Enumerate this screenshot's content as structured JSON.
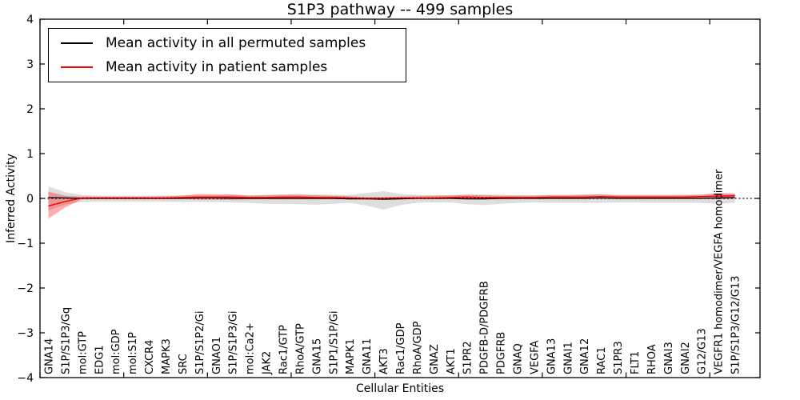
{
  "figure": {
    "title": "S1P3 pathway -- 499 samples",
    "xlabel": "Cellular Entities",
    "ylabel": "Inferred Activity"
  },
  "legend": {
    "items": [
      {
        "label": "Mean activity in all permuted samples",
        "color": "#000000"
      },
      {
        "label": "Mean activity in patient samples",
        "color": "#ff0000"
      }
    ]
  },
  "chart_data": {
    "type": "line",
    "title": "S1P3 pathway -- 499 samples",
    "xlabel": "Cellular Entities",
    "ylabel": "Inferred Activity",
    "ylim": [
      -4,
      4
    ],
    "yticks": [
      4,
      3,
      2,
      1,
      0,
      -1,
      -2,
      -3,
      -4
    ],
    "xlim": [
      0,
      43
    ],
    "xticks": [
      0,
      5,
      10,
      15,
      20,
      25,
      30,
      35,
      40
    ],
    "grid": false,
    "legend_position": "upper left",
    "zero_line": {
      "y": 0,
      "style": "dotted",
      "color": "#000000"
    },
    "categories": [
      "GNA14",
      "S1P/S1P3/Gq",
      "mol:GTP",
      "EDG1",
      "mol:GDP",
      "mol:S1P",
      "CXCR4",
      "MAPK3",
      "SRC",
      "S1P/S1P2/Gi",
      "GNAO1",
      "S1P/S1P3/Gi",
      "mol:Ca2+",
      "JAK2",
      "Rac1/GTP",
      "RhoA/GTP",
      "GNA15",
      "S1P1/S1P/Gi",
      "MAPK1",
      "GNA11",
      "AKT3",
      "Rac1/GDP",
      "RhoA/GDP",
      "GNAZ",
      "AKT1",
      "S1PR2",
      "PDGFB-D/PDGFRB",
      "PDGFRB",
      "GNAQ",
      "VEGFA",
      "GNA13",
      "GNAI1",
      "GNA12",
      "RAC1",
      "S1PR3",
      "FLT1",
      "RHOA",
      "GNAI3",
      "GNAI2",
      "G12/G13",
      "VEGFR1 homodimer/VEGFA homodimer",
      "S1P/S1P3/G12/G13"
    ],
    "series": [
      {
        "name": "Mean activity in all permuted samples",
        "color": "#000000",
        "line_width": 1.3,
        "band_color": "rgba(0,0,0,0.13)",
        "values": [
          0.02,
          0.01,
          0,
          0,
          0,
          0,
          0,
          0,
          0,
          0.01,
          0.01,
          0,
          0,
          0,
          0,
          0,
          0,
          0,
          -0.01,
          -0.01,
          -0.02,
          -0.01,
          0,
          0,
          0,
          -0.01,
          -0.01,
          0,
          0,
          0,
          0,
          0,
          0,
          0.01,
          0,
          0,
          0,
          0,
          0,
          0,
          0.01,
          0.02
        ],
        "band_high": [
          0.27,
          0.14,
          0.08,
          0.06,
          0.06,
          0.06,
          0.06,
          0.06,
          0.07,
          0.07,
          0.07,
          0.08,
          0.07,
          0.08,
          0.09,
          0.1,
          0.09,
          0.08,
          0.08,
          0.12,
          0.16,
          0.1,
          0.08,
          0.07,
          0.07,
          0.08,
          0.09,
          0.08,
          0.07,
          0.07,
          0.08,
          0.08,
          0.09,
          0.09,
          0.08,
          0.08,
          0.08,
          0.08,
          0.09,
          0.09,
          0.11,
          0.1
        ],
        "band_low": [
          -0.27,
          -0.14,
          -0.08,
          -0.07,
          -0.07,
          -0.07,
          -0.07,
          -0.07,
          -0.08,
          -0.08,
          -0.08,
          -0.09,
          -0.1,
          -0.12,
          -0.12,
          -0.13,
          -0.14,
          -0.12,
          -0.1,
          -0.16,
          -0.25,
          -0.15,
          -0.1,
          -0.09,
          -0.09,
          -0.13,
          -0.15,
          -0.12,
          -0.1,
          -0.09,
          -0.1,
          -0.1,
          -0.1,
          -0.1,
          -0.09,
          -0.09,
          -0.1,
          -0.1,
          -0.1,
          -0.1,
          -0.12,
          -0.1
        ]
      },
      {
        "name": "Mean activity in patient samples",
        "color": "#ff0000",
        "line_width": 1.5,
        "band_color": "rgba(255,0,0,0.32)",
        "values": [
          -0.17,
          -0.07,
          0.01,
          0.01,
          0.01,
          0.01,
          0.01,
          0.01,
          0.02,
          0.03,
          0.03,
          0.03,
          0.02,
          0.02,
          0.03,
          0.03,
          0.02,
          0.02,
          0.01,
          0,
          0,
          0.01,
          0.01,
          0.01,
          0.02,
          0.03,
          0.02,
          0.02,
          0.02,
          0.02,
          0.03,
          0.03,
          0.03,
          0.04,
          0.03,
          0.03,
          0.03,
          0.03,
          0.03,
          0.04,
          0.05,
          0.06
        ],
        "band_high": [
          0.15,
          0.06,
          0.04,
          0.04,
          0.04,
          0.04,
          0.04,
          0.05,
          0.06,
          0.1,
          0.09,
          0.09,
          0.06,
          0.07,
          0.08,
          0.08,
          0.07,
          0.06,
          0.05,
          0.03,
          0.03,
          0.04,
          0.05,
          0.06,
          0.07,
          0.08,
          0.07,
          0.06,
          0.06,
          0.06,
          0.07,
          0.07,
          0.08,
          0.09,
          0.07,
          0.07,
          0.07,
          0.07,
          0.07,
          0.08,
          0.12,
          0.11
        ],
        "band_low": [
          -0.45,
          -0.2,
          -0.02,
          -0.02,
          -0.02,
          -0.02,
          -0.02,
          -0.02,
          -0.01,
          -0.03,
          -0.03,
          -0.03,
          -0.02,
          -0.02,
          -0.02,
          -0.02,
          -0.02,
          -0.02,
          -0.02,
          -0.02,
          -0.02,
          -0.02,
          -0.02,
          -0.02,
          -0.01,
          -0.01,
          -0.02,
          -0.02,
          -0.01,
          -0.01,
          -0.01,
          -0.01,
          -0.01,
          -0.01,
          -0.01,
          -0.01,
          -0.01,
          -0.01,
          -0.01,
          -0.01,
          -0.02,
          -0.01
        ]
      }
    ]
  }
}
